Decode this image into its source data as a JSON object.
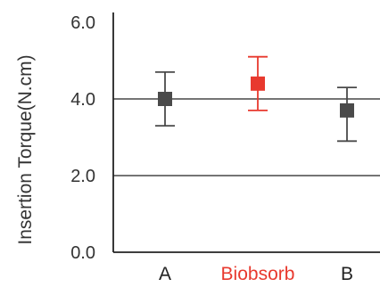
{
  "chart_data": {
    "type": "scatter",
    "ylabel": "Insertion Torque(N.cm)",
    "ylim": [
      0,
      6
    ],
    "yticks": [
      "0.0",
      "2.0",
      "4.0",
      "6.0"
    ],
    "ytick_values": [
      0,
      2,
      4,
      6
    ],
    "gridlines_at": [
      2,
      4
    ],
    "categories": [
      "A",
      "Biobsorb",
      "B"
    ],
    "category_colors": [
      "#222222",
      "#e8392e",
      "#222222"
    ],
    "points": [
      {
        "category": "A",
        "mean": 4.0,
        "lower": 3.3,
        "upper": 4.7,
        "color": "#4a4a4a"
      },
      {
        "category": "Biobsorb",
        "mean": 4.4,
        "lower": 3.7,
        "upper": 5.1,
        "color": "#e8392e"
      },
      {
        "category": "B",
        "mean": 3.7,
        "lower": 2.9,
        "upper": 4.3,
        "color": "#4a4a4a"
      }
    ]
  }
}
